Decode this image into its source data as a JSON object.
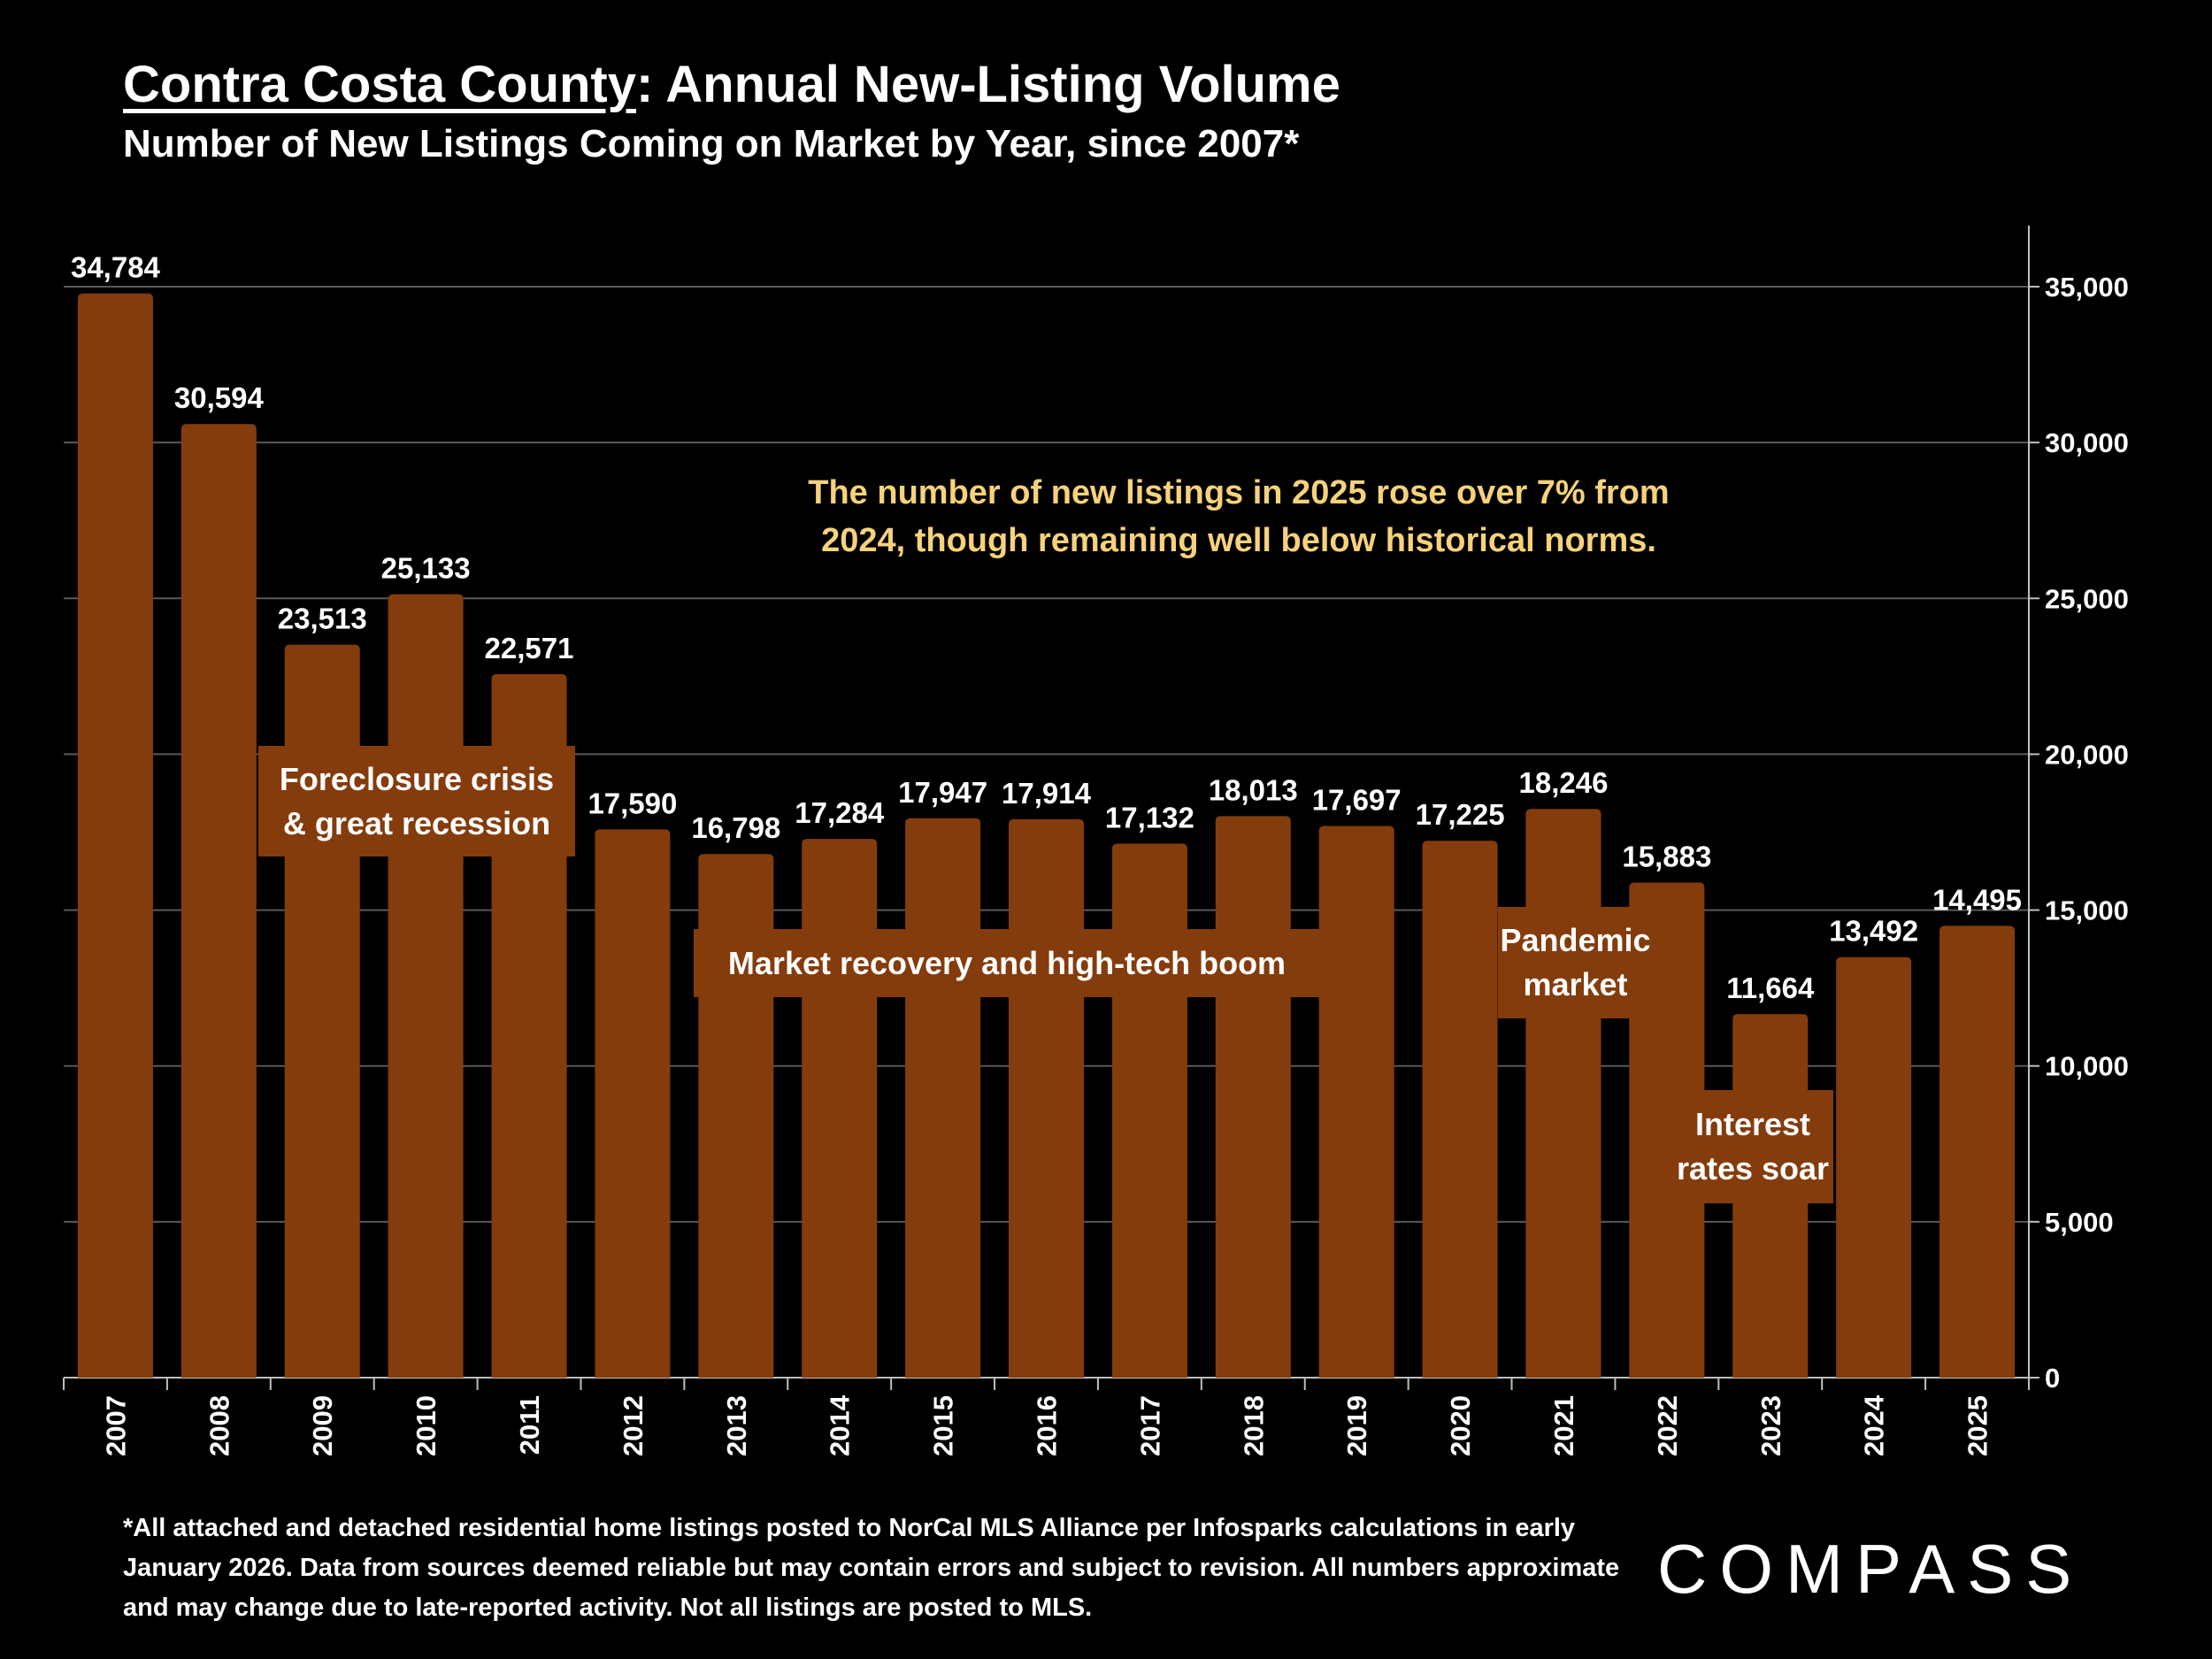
{
  "header": {
    "title_underlined": "Contra Costa County",
    "title_rest": ": Annual New-Listing Volume",
    "subtitle": "Number of New Listings Coming on Market by Year, since 2007*"
  },
  "chart_data": {
    "type": "bar",
    "title": "Contra Costa County: Annual New-Listing Volume",
    "subtitle": "Number of New Listings Coming on Market by Year, since 2007*",
    "categories": [
      "2007",
      "2008",
      "2009",
      "2010",
      "2011",
      "2012",
      "2013",
      "2014",
      "2015",
      "2016",
      "2017",
      "2018",
      "2019",
      "2020",
      "2021",
      "2022",
      "2023",
      "2024",
      "2025"
    ],
    "values": [
      34784,
      30594,
      23513,
      25133,
      22571,
      17590,
      16798,
      17284,
      17947,
      17914,
      17132,
      18013,
      17697,
      17225,
      18246,
      15883,
      11664,
      13492,
      14495
    ],
    "data_labels": [
      "34,784",
      "30,594",
      "23,513",
      "25,133",
      "22,571",
      "17,590",
      "16,798",
      "17,284",
      "17,947",
      "17,914",
      "17,132",
      "18,013",
      "17,697",
      "17,225",
      "18,246",
      "15,883",
      "11,664",
      "13,492",
      "14,495"
    ],
    "ylim": [
      0,
      35000
    ],
    "yticks": [
      0,
      5000,
      10000,
      15000,
      20000,
      25000,
      30000,
      35000
    ],
    "ytick_labels": [
      "0",
      "5,000",
      "10,000",
      "15,000",
      "20,000",
      "25,000",
      "30,000",
      "35,000"
    ],
    "y_axis_side": "right",
    "grid": true,
    "bar_color": "#843c0c",
    "annotation": {
      "line1": "The number of new listings in 2025 rose over 7% from",
      "line2": "2024, though remaining well below historical norms.",
      "color": "#f7d27a"
    },
    "period_labels": [
      {
        "line1": "Foreclosure crisis",
        "line2": "& great recession"
      },
      {
        "line1": "Market recovery and high-tech boom"
      },
      {
        "line1": "Pandemic",
        "line2": "market"
      },
      {
        "line1": "Interest",
        "line2": "rates soar"
      }
    ]
  },
  "footnote": "*All attached and detached residential home listings posted to NorCal MLS Alliance per Infosparks calculations in early January 2026. Data from sources deemed reliable but may contain errors and subject to revision. All numbers approximate and may change due to late-reported activity. Not all listings are posted to MLS.",
  "logo": "COMPASS"
}
